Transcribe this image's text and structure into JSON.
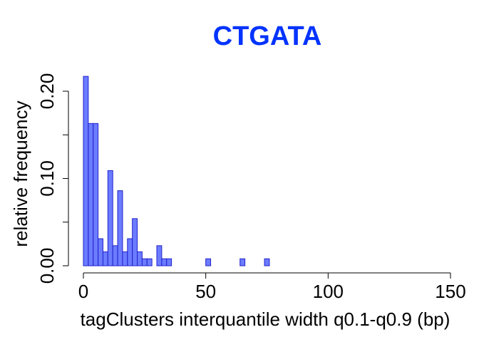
{
  "colors": {
    "title": "#0033ff",
    "bar_fill": "#6b7cff",
    "bar_stroke": "#2222cc",
    "axis": "#000000"
  },
  "chart_data": {
    "type": "bar",
    "title": "CTGATA",
    "xlabel": "tagClusters interquantile width q0.1-q0.9 (bp)",
    "ylabel": "relative frequency",
    "xlim": [
      0,
      150
    ],
    "ylim": [
      0,
      0.22
    ],
    "xticks": [
      0,
      50,
      100,
      150
    ],
    "xtick_labels": [
      "0",
      "50",
      "100",
      "150"
    ],
    "yticks": [
      0,
      0.05,
      0.1,
      0.15,
      0.2
    ],
    "ytick_labels": [
      "0.00",
      "",
      "0.10",
      "",
      "0.20"
    ],
    "bin_width": 2,
    "bins_start": [
      0,
      2,
      4,
      6,
      8,
      10,
      12,
      14,
      16,
      18,
      20,
      22,
      24,
      26,
      28,
      30,
      32,
      34,
      36,
      38,
      40,
      42,
      44,
      46,
      48,
      50,
      52,
      54,
      56,
      58,
      60,
      62,
      64,
      66,
      68,
      70,
      72,
      74
    ],
    "values": [
      0.217,
      0.163,
      0.163,
      0.031,
      0.016,
      0.109,
      0.023,
      0.086,
      0.016,
      0.031,
      0.054,
      0.016,
      0.008,
      0.008,
      0,
      0.023,
      0.008,
      0.008,
      0,
      0,
      0,
      0,
      0,
      0,
      0,
      0.008,
      0,
      0,
      0,
      0,
      0,
      0,
      0.008,
      0,
      0,
      0,
      0,
      0.008
    ],
    "grid": false,
    "legend": "none"
  }
}
